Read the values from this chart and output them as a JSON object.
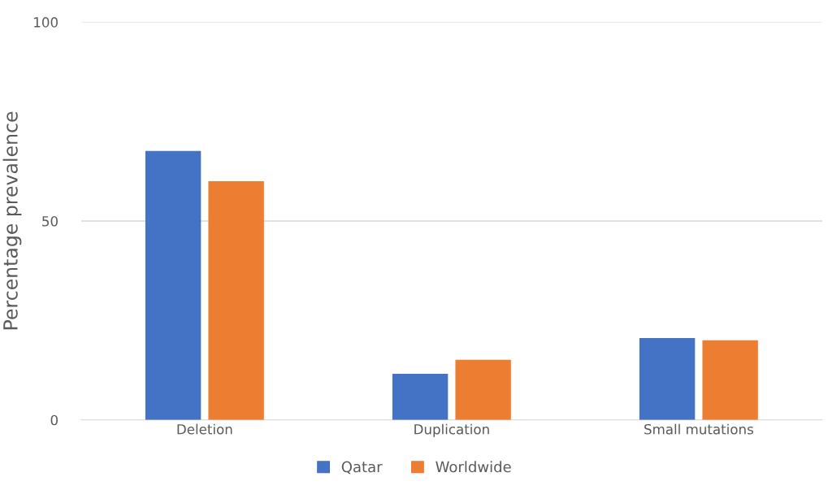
{
  "chart_data": {
    "type": "bar",
    "ylabel": "Percentage prevalence",
    "categories": [
      "Deletion",
      "Duplication",
      "Small mutations"
    ],
    "series": [
      {
        "name": "Qatar",
        "color": "#4472c4",
        "values": [
          67.6,
          11.6,
          20.6
        ]
      },
      {
        "name": "Worldwide",
        "color": "#ed7d31",
        "values": [
          60.0,
          15.1,
          20.0
        ]
      }
    ],
    "ylim": [
      0,
      100
    ],
    "yticks": [
      0,
      50,
      100
    ],
    "grid": "y",
    "legend": "bottom"
  }
}
